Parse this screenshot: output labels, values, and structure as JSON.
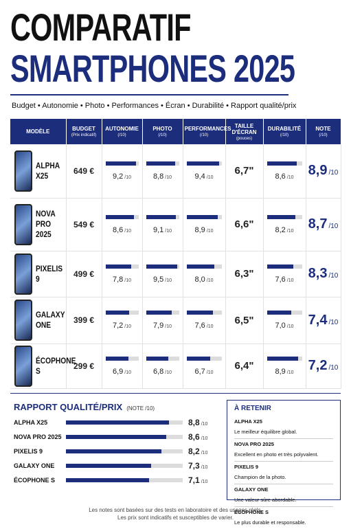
{
  "header": {
    "title_line1": "COMPARATIF",
    "title_line2": "SMARTPHONES 2025",
    "criteria": "Budget • Autonomie • Photo • Performances • Écran • Durabilité • Rapport qualité/prix"
  },
  "scale": {
    "value": 10,
    "label": "/10"
  },
  "table": {
    "columns": [
      {
        "title": "MODÈLE"
      },
      {
        "title": "BUDGET",
        "sub": "(Prix indicatif)"
      },
      {
        "title": "AUTONOMIE",
        "sub": "(/10)"
      },
      {
        "title": "PHOTO",
        "sub": "(/10)"
      },
      {
        "title": "PERFORMANCES",
        "sub": "(/10)"
      },
      {
        "title": "TAILLE D'ÉCRAN",
        "sub": "(pouces)"
      },
      {
        "title": "DURABILITÉ",
        "sub": "(/10)"
      },
      {
        "title": "NOTE",
        "sub": "(/10)"
      }
    ],
    "rows": [
      {
        "model": "ALPHA X25",
        "price": "649 €",
        "autonomie": {
          "value": 9.2,
          "label": "9,2"
        },
        "photo": {
          "value": 8.8,
          "label": "8,8"
        },
        "performances": {
          "value": 9.4,
          "label": "9,4"
        },
        "screen": "6,7\"",
        "durabilite": {
          "value": 8.6,
          "label": "8,6"
        },
        "note": "8,9"
      },
      {
        "model": "NOVA PRO 2025",
        "price": "549 €",
        "autonomie": {
          "value": 8.6,
          "label": "8,6"
        },
        "photo": {
          "value": 9.1,
          "label": "9,1"
        },
        "performances": {
          "value": 8.9,
          "label": "8,9"
        },
        "screen": "6,6\"",
        "durabilite": {
          "value": 8.2,
          "label": "8,2"
        },
        "note": "8,7"
      },
      {
        "model": "PIXELIS 9",
        "price": "499 €",
        "autonomie": {
          "value": 7.8,
          "label": "7,8"
        },
        "photo": {
          "value": 9.5,
          "label": "9,5"
        },
        "performances": {
          "value": 8.0,
          "label": "8,0"
        },
        "screen": "6,3\"",
        "durabilite": {
          "value": 7.6,
          "label": "7,6"
        },
        "note": "8,3"
      },
      {
        "model": "GALAXY ONE",
        "price": "399 €",
        "autonomie": {
          "value": 7.2,
          "label": "7,2"
        },
        "photo": {
          "value": 7.9,
          "label": "7,9"
        },
        "performances": {
          "value": 7.6,
          "label": "7,6"
        },
        "screen": "6,5\"",
        "durabilite": {
          "value": 7.0,
          "label": "7,0"
        },
        "note": "7,4"
      },
      {
        "model": "ÉCOPHONE S",
        "price": "299 €",
        "autonomie": {
          "value": 6.9,
          "label": "6,9"
        },
        "photo": {
          "value": 6.8,
          "label": "6,8"
        },
        "performances": {
          "value": 6.7,
          "label": "6,7"
        },
        "screen": "6,4\"",
        "durabilite": {
          "value": 8.9,
          "label": "8,9"
        },
        "note": "7,2"
      }
    ]
  },
  "value_section": {
    "title": "RAPPORT QUALITÉ/PRIX",
    "subtitle": "(NOTE /10)",
    "items": [
      {
        "name": "ALPHA X25",
        "score": {
          "value": 8.8,
          "label": "8,8"
        }
      },
      {
        "name": "NOVA PRO 2025",
        "score": {
          "value": 8.6,
          "label": "8,6"
        }
      },
      {
        "name": "PIXELIS 9",
        "score": {
          "value": 8.2,
          "label": "8,2"
        }
      },
      {
        "name": "GALAXY ONE",
        "score": {
          "value": 7.3,
          "label": "7,3"
        }
      },
      {
        "name": "ÉCOPHONE S",
        "score": {
          "value": 7.1,
          "label": "7,1"
        }
      }
    ]
  },
  "takeaways": {
    "title": "À RETENIR",
    "items": [
      {
        "name": "ALPHA X25",
        "text": "Le meilleur équilibre global."
      },
      {
        "name": "NOVA PRO 2025",
        "text": "Excellent en photo et très polyvalent."
      },
      {
        "name": "PIXELIS 9",
        "text": "Champion de la photo."
      },
      {
        "name": "GALAXY ONE",
        "text": "Une valeur sûre abordable."
      },
      {
        "name": "ÉCOPHONE S",
        "text": "Le plus durable et responsable."
      }
    ]
  },
  "footer": {
    "line1": "Les notes sont basées sur des tests en laboratoire et des usages réels.",
    "line2": "Les prix sont indicatifs et susceptibles de varier."
  }
}
